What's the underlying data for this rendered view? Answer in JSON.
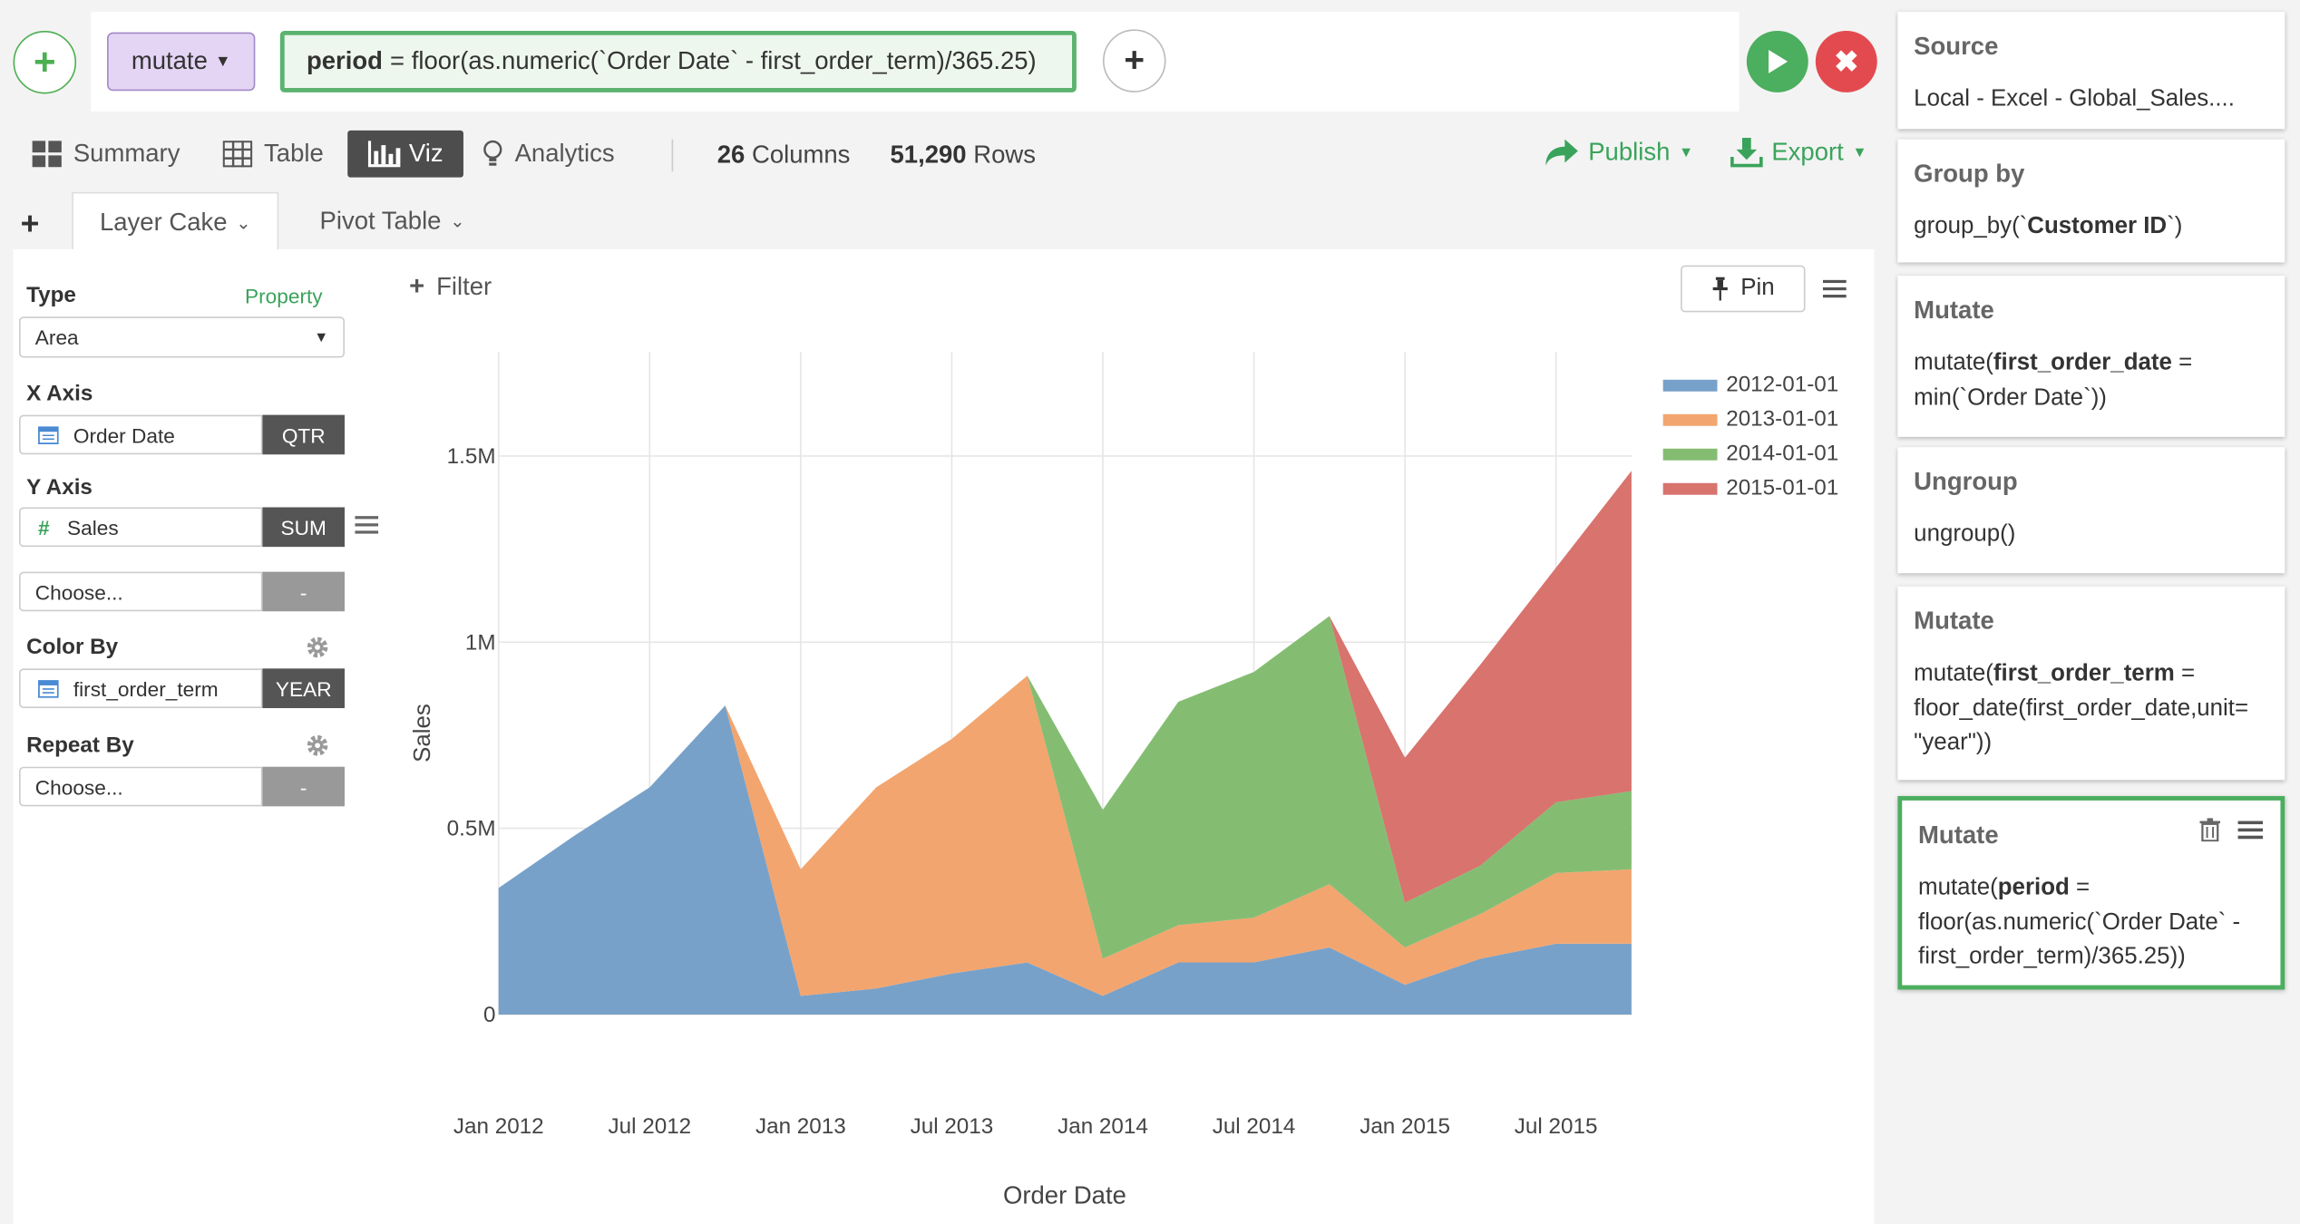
{
  "command": {
    "mode_label": "mutate",
    "formula_var": "period",
    "formula_rest": "= floor(as.numeric(`Order Date` - first_order_term)/365.25)"
  },
  "views": {
    "summary": "Summary",
    "table": "Table",
    "viz": "Viz",
    "analytics": "Analytics"
  },
  "stats": {
    "columns_count": "26",
    "columns_label": "Columns",
    "rows_count": "51,290",
    "rows_label": "Rows"
  },
  "actions": {
    "publish": "Publish",
    "export": "Export"
  },
  "tabs": {
    "layer_cake": "Layer Cake",
    "pivot_table": "Pivot Table"
  },
  "config": {
    "type_label": "Type",
    "property_link": "Property",
    "type_value": "Area",
    "x_axis_label": "X Axis",
    "x_field": "Order Date",
    "x_agg": "QTR",
    "y_axis_label": "Y Axis",
    "y_field": "Sales",
    "y_agg": "SUM",
    "choose_placeholder": "Choose...",
    "dash": "-",
    "color_by_label": "Color By",
    "color_field": "first_order_term",
    "color_agg": "YEAR",
    "repeat_by_label": "Repeat By",
    "repeat_placeholder": "Choose...",
    "repeat_dash": "-"
  },
  "chart_toolbar": {
    "filter": "Filter",
    "pin": "Pin"
  },
  "chart_data": {
    "type": "area",
    "stacked": true,
    "xlabel": "Order Date",
    "ylabel": "Sales",
    "x_tick_labels": [
      "Jan 2012",
      "Jul 2012",
      "Jan 2013",
      "Jul 2013",
      "Jan 2014",
      "Jul 2014",
      "Jan 2015",
      "Jul 2015"
    ],
    "y_tick_labels": [
      "0",
      "0.5M",
      "1M",
      "1.5M"
    ],
    "ylim": [
      0,
      1800000
    ],
    "x": [
      "2012-Q1",
      "2012-Q2",
      "2012-Q3",
      "2012-Q4",
      "2013-Q1",
      "2013-Q2",
      "2013-Q3",
      "2013-Q4",
      "2014-Q1",
      "2014-Q2",
      "2014-Q3",
      "2014-Q4",
      "2015-Q1",
      "2015-Q2",
      "2015-Q3",
      "2015-Q4"
    ],
    "legend_position": "top-right",
    "series": [
      {
        "name": "2012-01-01",
        "color": "#78a1c9",
        "values": [
          340000,
          480000,
          610000,
          830000,
          50000,
          70000,
          110000,
          140000,
          50000,
          140000,
          140000,
          180000,
          80000,
          150000,
          190000,
          190000
        ]
      },
      {
        "name": "2013-01-01",
        "color": "#f2a56f",
        "values": [
          0,
          0,
          0,
          0,
          340000,
          540000,
          630000,
          770000,
          100000,
          100000,
          120000,
          170000,
          100000,
          120000,
          190000,
          200000
        ]
      },
      {
        "name": "2014-01-01",
        "color": "#84bd72",
        "values": [
          0,
          0,
          0,
          0,
          0,
          0,
          0,
          0,
          400000,
          600000,
          660000,
          720000,
          120000,
          130000,
          190000,
          210000
        ]
      },
      {
        "name": "2015-01-01",
        "color": "#d8736e",
        "values": [
          0,
          0,
          0,
          0,
          0,
          0,
          0,
          0,
          0,
          0,
          0,
          0,
          390000,
          540000,
          630000,
          860000
        ]
      }
    ]
  },
  "steps": [
    {
      "title": "Source",
      "body": "Local - Excel - Global_Sales...."
    },
    {
      "title": "Group by",
      "body_pre": "group_by(`",
      "body_bold": "Customer ID",
      "body_post": "`)"
    },
    {
      "title": "Mutate",
      "body_pre": "mutate(",
      "body_bold": "first_order_date",
      "body_post": " = min(`Order Date`))"
    },
    {
      "title": "Ungroup",
      "body": "ungroup()"
    },
    {
      "title": "Mutate",
      "body_pre": "mutate(",
      "body_bold": "first_order_term",
      "body_post": " = floor_date(first_order_date,unit= \"year\"))"
    },
    {
      "title": "Mutate",
      "body_pre": "mutate(",
      "body_bold": "period",
      "body_post": " = floor(as.numeric(`Order Date` - first_order_term)/365.25))"
    }
  ]
}
